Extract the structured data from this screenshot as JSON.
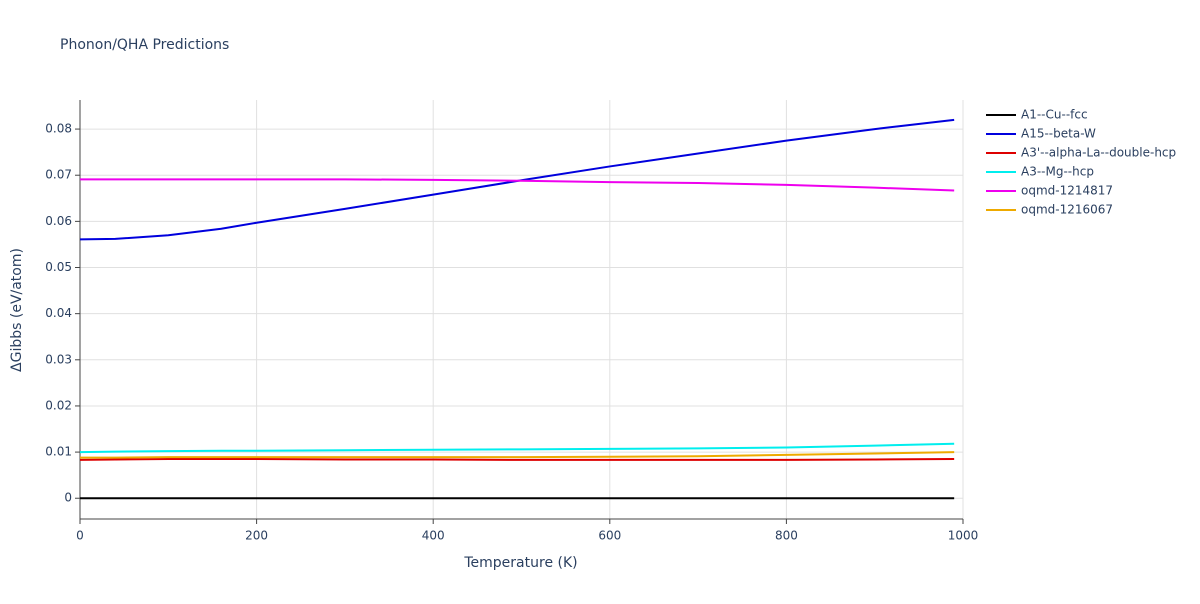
{
  "chart_data": {
    "type": "line",
    "title": "Phonon/QHA Predictions",
    "x_label": "Temperature (K)",
    "y_label": "ΔGibbs (eV/atom)",
    "x": [
      0,
      40,
      100,
      160,
      200,
      300,
      400,
      500,
      600,
      700,
      800,
      900,
      990
    ],
    "series": [
      {
        "name": "A1--Cu--fcc",
        "color": "#000000",
        "values": [
          0,
          0,
          0,
          0,
          0,
          0,
          0,
          0,
          0,
          0,
          0,
          0,
          0
        ]
      },
      {
        "name": "A15--beta-W",
        "color": "#0000dd",
        "values": [
          0.0561,
          0.0562,
          0.057,
          0.0584,
          0.0597,
          0.0627,
          0.0658,
          0.0689,
          0.0719,
          0.0747,
          0.0775,
          0.08,
          0.082
        ]
      },
      {
        "name": "A3'--alpha-La--double-hcp",
        "color": "#dd0000",
        "values": [
          0.0083,
          0.0084,
          0.0085,
          0.0085,
          0.0085,
          0.0084,
          0.0084,
          0.0083,
          0.0083,
          0.0083,
          0.0083,
          0.0084,
          0.0085
        ]
      },
      {
        "name": "A3--Mg--hcp",
        "color": "#00eeee",
        "values": [
          0.01,
          0.0101,
          0.0102,
          0.0103,
          0.0103,
          0.0104,
          0.0105,
          0.0106,
          0.0107,
          0.0108,
          0.011,
          0.0114,
          0.0118
        ]
      },
      {
        "name": "oqmd-1214817",
        "color": "#ee00ee",
        "values": [
          0.0691,
          0.0691,
          0.0691,
          0.0691,
          0.0691,
          0.0691,
          0.069,
          0.0688,
          0.0685,
          0.0683,
          0.0679,
          0.0673,
          0.0667
        ]
      },
      {
        "name": "oqmd-1216067",
        "color": "#eeaa00",
        "values": [
          0.0088,
          0.0088,
          0.0089,
          0.0089,
          0.0089,
          0.0089,
          0.0089,
          0.0089,
          0.009,
          0.0091,
          0.0094,
          0.0097,
          0.01
        ]
      }
    ],
    "xlim": [
      0,
      1000
    ],
    "xticks": [
      0,
      200,
      400,
      600,
      800,
      1000
    ],
    "ylim": [
      -0.0045,
      0.0863
    ],
    "yticks": [
      0,
      0.01,
      0.02,
      0.03,
      0.04,
      0.05,
      0.06,
      0.07,
      0.08
    ],
    "grid": true,
    "legend": "right"
  }
}
